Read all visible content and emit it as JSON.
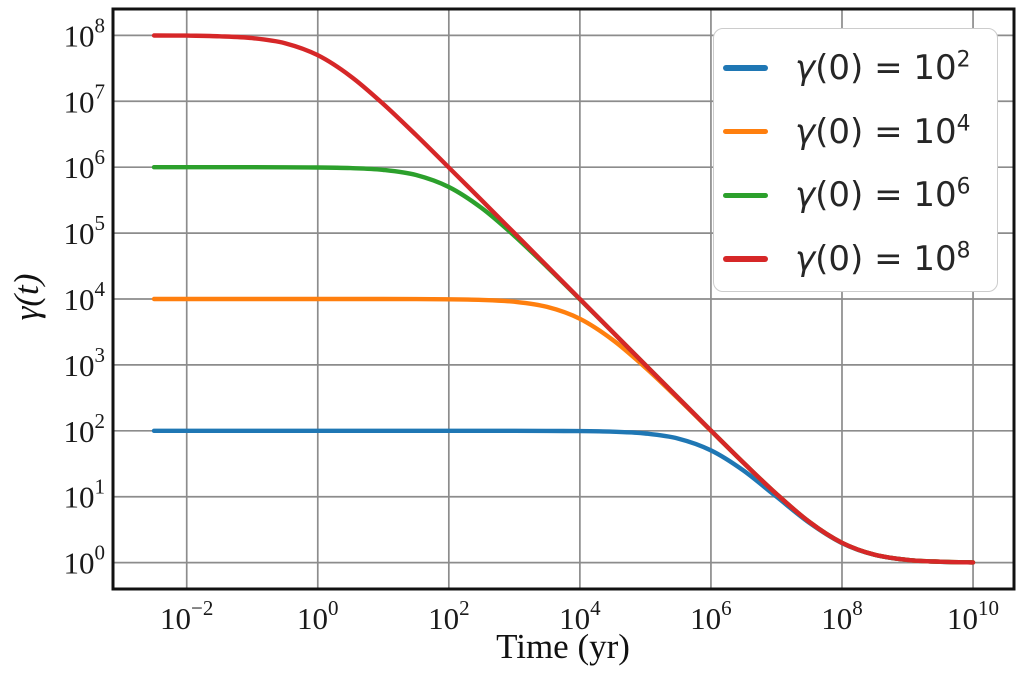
{
  "chart_data": {
    "type": "line",
    "xlabel": "Time (yr)",
    "ylabel": "γ(t)",
    "x_scale": "log",
    "y_scale": "log",
    "grid": true,
    "legend_position": "upper right",
    "xlim_log10": [
      -3.125,
      10.625
    ],
    "ylim_log10": [
      -0.4,
      8.4
    ],
    "x_ticks": [
      {
        "log10": -2,
        "exp_label": "−2"
      },
      {
        "log10": 0,
        "exp_label": "0"
      },
      {
        "log10": 2,
        "exp_label": "2"
      },
      {
        "log10": 4,
        "exp_label": "4"
      },
      {
        "log10": 6,
        "exp_label": "6"
      },
      {
        "log10": 8,
        "exp_label": "8"
      },
      {
        "log10": 10,
        "exp_label": "10"
      }
    ],
    "y_ticks": [
      {
        "log10": 0,
        "exp_label": "0"
      },
      {
        "log10": 1,
        "exp_label": "1"
      },
      {
        "log10": 2,
        "exp_label": "2"
      },
      {
        "log10": 3,
        "exp_label": "3"
      },
      {
        "log10": 4,
        "exp_label": "4"
      },
      {
        "log10": 5,
        "exp_label": "5"
      },
      {
        "log10": 6,
        "exp_label": "6"
      },
      {
        "log10": 7,
        "exp_label": "7"
      },
      {
        "log10": 8,
        "exp_label": "8"
      }
    ],
    "tick_base": "10",
    "x_log10": [
      -2.5,
      -2,
      -1.5,
      -1,
      -0.5,
      0,
      0.5,
      1,
      1.5,
      2,
      2.5,
      3,
      3.5,
      4,
      4.5,
      5,
      5.5,
      6,
      6.5,
      7,
      7.5,
      8,
      8.5,
      9,
      9.5,
      10
    ],
    "series": [
      {
        "name": "gamma0-1e2",
        "label_base": "γ(0) = 10",
        "label_exp": "2",
        "gamma0": 100,
        "color": "#1f77b4",
        "y_log10": [
          2,
          2,
          2,
          2,
          2,
          2,
          2,
          2,
          2,
          2,
          2,
          1.9996,
          1.9986,
          1.9957,
          1.9866,
          1.959,
          1.882,
          1.7033,
          1.3943,
          1.0,
          0.6058,
          0.2967,
          0.118,
          0.041,
          0.0134,
          0.0043
        ]
      },
      {
        "name": "gamma0-1e4",
        "label_base": "γ(0) = 10",
        "label_exp": "4",
        "gamma0": 10000,
        "color": "#ff7f0e",
        "y_log10": [
          4,
          4,
          4,
          4,
          4,
          4,
          4,
          3.9995,
          3.9986,
          3.9957,
          3.9865,
          3.9586,
          3.8807,
          3.6991,
          3.3808,
          2.959,
          2.4879,
          2.0,
          1.5121,
          1.041,
          0.6192,
          0.301,
          0.1193,
          0.0414,
          0.0135,
          0.0043
        ]
      },
      {
        "name": "gamma0-1e6",
        "label_base": "γ(0) = 10",
        "label_exp": "6",
        "gamma0": 1000000,
        "color": "#2ca02c",
        "y_log10": [
          6,
          6,
          6,
          5.9996,
          5.9986,
          5.9957,
          5.9865,
          5.9586,
          5.8807,
          5.699,
          5.3807,
          4.9586,
          4.4865,
          3.9957,
          3.4988,
          3.0,
          2.5013,
          2.0043,
          1.5135,
          1.0414,
          0.6193,
          0.301,
          0.1193,
          0.0414,
          0.0135,
          0.0043
        ]
      },
      {
        "name": "gamma0-1e8",
        "label_base": "γ(0) = 10",
        "label_exp": "8",
        "gamma0": 100000000,
        "color": "#d62728",
        "y_log10": [
          7.9986,
          7.9957,
          7.9865,
          7.9586,
          7.8807,
          7.699,
          7.3807,
          6.9586,
          6.4865,
          5.9957,
          5.4986,
          4.9996,
          4.4999,
          4.0,
          3.5001,
          3.0004,
          2.5013,
          2.0043,
          1.5135,
          1.0414,
          0.6193,
          0.301,
          0.1193,
          0.0414,
          0.0135,
          0.0043
        ]
      }
    ],
    "style": {
      "grid_color": "#8c8c8c",
      "spine_color": "#111111",
      "tick_text_color": "#1a1a1a",
      "legend_border_color": "#cccccc",
      "background_color": "#ffffff",
      "line_width": 4.4
    }
  }
}
